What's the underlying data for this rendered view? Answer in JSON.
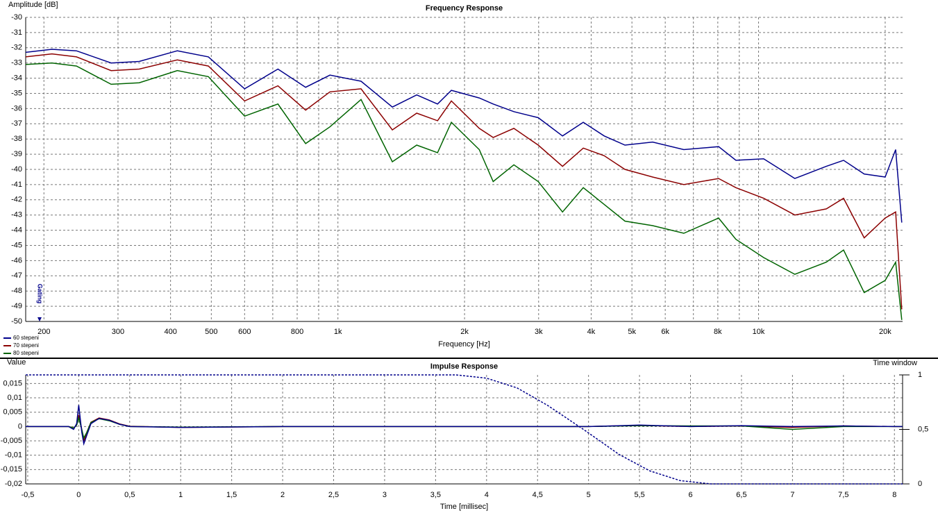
{
  "chart_data": [
    {
      "type": "line",
      "title": "Frequency Response",
      "xlabel": "Frequency [Hz]",
      "ylabel": "Amplitude [dB]",
      "xscale": "log",
      "xlim": [
        181,
        22000
      ],
      "ylim": [
        -50,
        -30
      ],
      "grid": true,
      "legend": "bottom-left",
      "annotation": "Gating",
      "xticks": [
        200,
        300,
        400,
        500,
        600,
        800,
        {
          "value": 1000,
          "label": "1k"
        },
        {
          "value": 2000,
          "label": "2k"
        },
        {
          "value": 3000,
          "label": "3k"
        },
        {
          "value": 4000,
          "label": "4k"
        },
        {
          "value": 5000,
          "label": "5k"
        },
        {
          "value": 6000,
          "label": "6k"
        },
        {
          "value": 8000,
          "label": "8k"
        },
        {
          "value": 10000,
          "label": "10k"
        },
        {
          "value": 20000,
          "label": "20k"
        }
      ],
      "xminor": [
        700,
        900,
        7000,
        9000
      ],
      "yticks": [
        -30,
        -31,
        -32,
        -33,
        -34,
        -35,
        -36,
        -37,
        -38,
        -39,
        -40,
        -41,
        -42,
        -43,
        -44,
        -45,
        -46,
        -47,
        -48,
        -49,
        -50
      ],
      "x": [
        181,
        209,
        239,
        289,
        337,
        415,
        492,
        600,
        720,
        838,
        957,
        1135,
        1347,
        1539,
        1725,
        1861,
        2168,
        2339,
        2620,
        2993,
        3420,
        3831,
        4295,
        4812,
        5600,
        6642,
        8035,
        8833,
        10283,
        12195,
        14487,
        15925,
        17830,
        20000,
        21180,
        21900
      ],
      "series": [
        {
          "name": "60 stepeni",
          "color": "#00008b",
          "values": [
            -32.3,
            -32.1,
            -32.2,
            -33.0,
            -32.9,
            -32.2,
            -32.6,
            -34.7,
            -33.4,
            -34.6,
            -33.8,
            -34.2,
            -35.9,
            -35.1,
            -35.7,
            -34.8,
            -35.3,
            -35.7,
            -36.2,
            -36.6,
            -37.8,
            -36.9,
            -37.8,
            -38.4,
            -38.2,
            -38.7,
            -38.5,
            -39.4,
            -39.3,
            -40.6,
            -39.8,
            -39.4,
            -40.3,
            -40.5,
            -38.7,
            -43.5
          ]
        },
        {
          "name": "70 stepeni",
          "color": "#8b0000",
          "values": [
            -32.6,
            -32.4,
            -32.6,
            -33.5,
            -33.4,
            -32.8,
            -33.2,
            -35.5,
            -34.5,
            -36.1,
            -34.9,
            -34.7,
            -37.4,
            -36.3,
            -36.8,
            -35.5,
            -37.3,
            -37.9,
            -37.3,
            -38.4,
            -39.8,
            -38.6,
            -39.1,
            -40.0,
            -40.5,
            -41.0,
            -40.6,
            -41.2,
            -41.9,
            -43.0,
            -42.6,
            -41.9,
            -44.5,
            -43.2,
            -42.8,
            -49.2
          ]
        },
        {
          "name": "80 stepeni",
          "color": "#006400",
          "values": [
            -33.1,
            -33.0,
            -33.2,
            -34.4,
            -34.3,
            -33.5,
            -33.9,
            -36.5,
            -35.7,
            -38.3,
            -37.2,
            -35.4,
            -39.5,
            -38.4,
            -38.9,
            -36.9,
            -38.7,
            -40.8,
            -39.7,
            -40.8,
            -42.8,
            -41.2,
            -42.3,
            -43.4,
            -43.7,
            -44.2,
            -43.2,
            -44.6,
            -45.8,
            -46.9,
            -46.1,
            -45.3,
            -48.1,
            -47.3,
            -46.1,
            -49.9
          ]
        }
      ]
    },
    {
      "type": "line",
      "title": "Impulse Response",
      "xlabel": "Time [millisec]",
      "ylabel": "Value",
      "y2label": "Time window",
      "xlim": [
        -0.52,
        8.08
      ],
      "ylim": [
        -0.02,
        0.018
      ],
      "y2lim": [
        0,
        1
      ],
      "grid": true,
      "xticks": [
        {
          "value": -0.5,
          "label": "-0,5"
        },
        0,
        {
          "value": 0.5,
          "label": "0,5"
        },
        1,
        {
          "value": 1.5,
          "label": "1,5"
        },
        2,
        {
          "value": 2.5,
          "label": "2,5"
        },
        3,
        {
          "value": 3.5,
          "label": "3,5"
        },
        4,
        {
          "value": 4.5,
          "label": "4,5"
        },
        5,
        {
          "value": 5.5,
          "label": "5,5"
        },
        6,
        {
          "value": 6.5,
          "label": "6,5"
        },
        7,
        {
          "value": 7.5,
          "label": "7,5"
        },
        8
      ],
      "yticks": [
        {
          "value": 0.015,
          "label": "0,015"
        },
        {
          "value": 0.01,
          "label": "0,01"
        },
        {
          "value": 0.005,
          "label": "0,005"
        },
        0,
        {
          "value": -0.005,
          "label": "-0,005"
        },
        {
          "value": -0.01,
          "label": "-0,01"
        },
        {
          "value": -0.015,
          "label": "-0,015"
        },
        {
          "value": -0.02,
          "label": "-0,02"
        }
      ],
      "y2ticks": [
        1,
        {
          "value": 0.5,
          "label": "0,5"
        },
        0
      ],
      "series": [
        {
          "color": "#8b0000",
          "x": [
            -0.52,
            -0.1,
            -0.05,
            -0.02,
            0,
            0.03,
            0.05,
            0.08,
            0.12,
            0.2,
            0.3,
            0.4,
            0.5,
            1,
            2,
            3,
            4,
            5,
            5.5,
            6,
            6.5,
            7,
            7.5,
            8,
            8.08
          ],
          "values": [
            0,
            0,
            -0.0005,
            0.0005,
            0.004,
            -0.001,
            -0.005,
            -0.002,
            0.0015,
            0.003,
            0.0023,
            0.0009,
            0.0001,
            -0.0003,
            0,
            0,
            0,
            0,
            0.0004,
            0,
            0.0002,
            -0.0003,
            0.0002,
            0,
            0
          ]
        },
        {
          "color": "#006400",
          "x": [
            -0.52,
            -0.1,
            -0.05,
            -0.02,
            0,
            0.03,
            0.05,
            0.08,
            0.12,
            0.2,
            0.3,
            0.4,
            0.5,
            1,
            2,
            3,
            4,
            5,
            5.5,
            6,
            6.5,
            7,
            7.5,
            8,
            8.08
          ],
          "values": [
            0,
            0,
            -0.0005,
            0.0005,
            0.003,
            -0.001,
            -0.004,
            -0.002,
            0.0014,
            0.0027,
            0.002,
            0.0008,
            0,
            -0.0002,
            0,
            0,
            0,
            0,
            0.0003,
            0.0002,
            0.0002,
            -0.001,
            0,
            0,
            0
          ]
        },
        {
          "color": "#00008b",
          "x": [
            -0.52,
            -0.1,
            -0.05,
            -0.02,
            0,
            0.03,
            0.05,
            0.08,
            0.12,
            0.2,
            0.3,
            0.4,
            0.5,
            1,
            2,
            3,
            4,
            5,
            5.5,
            6,
            6.5,
            7,
            7.5,
            8,
            8.08
          ],
          "values": [
            0,
            0,
            -0.001,
            0.001,
            0.0075,
            -0.002,
            -0.006,
            -0.003,
            0.001,
            0.0028,
            0.0022,
            0.0008,
            0,
            -0.0003,
            0,
            0,
            0,
            0,
            0.0005,
            0,
            0.0003,
            0,
            0.0002,
            0,
            0
          ]
        },
        {
          "color": "#00008b",
          "axis": "y2",
          "linestyle": "dashed",
          "x": [
            -0.52,
            3.7,
            4.0,
            4.3,
            4.6,
            4.95,
            5.3,
            5.6,
            5.9,
            6.2,
            8.08
          ],
          "values": [
            1,
            1,
            0.97,
            0.88,
            0.72,
            0.5,
            0.27,
            0.12,
            0.03,
            0,
            0
          ]
        }
      ]
    }
  ]
}
